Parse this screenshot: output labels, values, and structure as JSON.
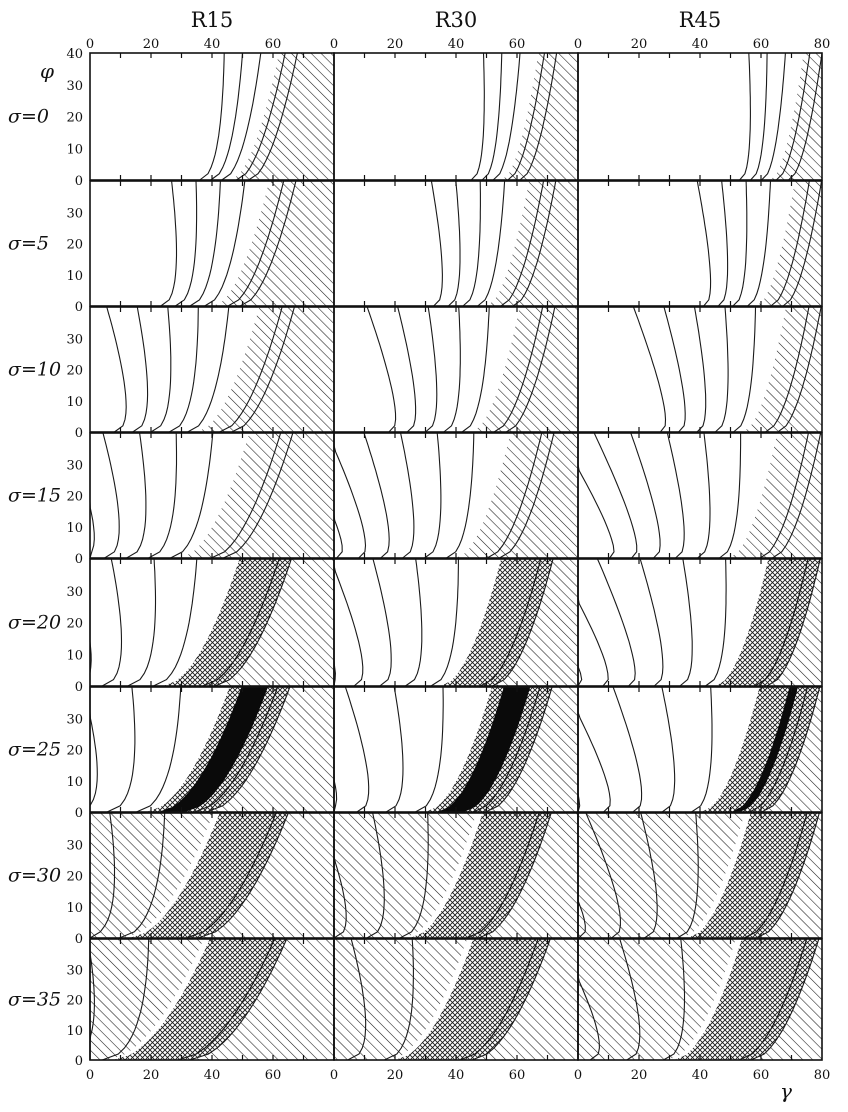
{
  "chart_data": {
    "type": "contour",
    "columns": [
      "R15",
      "R30",
      "R45"
    ],
    "rows": [
      "σ=0",
      "σ=5",
      "σ=10",
      "σ=15",
      "σ=20",
      "σ=25",
      "σ=30",
      "σ=35"
    ],
    "sigma_values": [
      0,
      5,
      10,
      15,
      20,
      25,
      30,
      35
    ],
    "xlabel": "γ",
    "ylabel": "φ",
    "xlim": [
      0,
      80
    ],
    "ylim": [
      0,
      40
    ],
    "x_ticks": [
      "0",
      "20",
      "40",
      "60",
      "80"
    ],
    "y_ticks": [
      "0",
      "10",
      "20",
      "30",
      "40"
    ],
    "region_fills": [
      "white",
      "hatched",
      "cross-hatched",
      "black"
    ],
    "colors": {
      "ink": "#111111",
      "paper": "#ffffff",
      "core": "#0a0a0a"
    }
  }
}
